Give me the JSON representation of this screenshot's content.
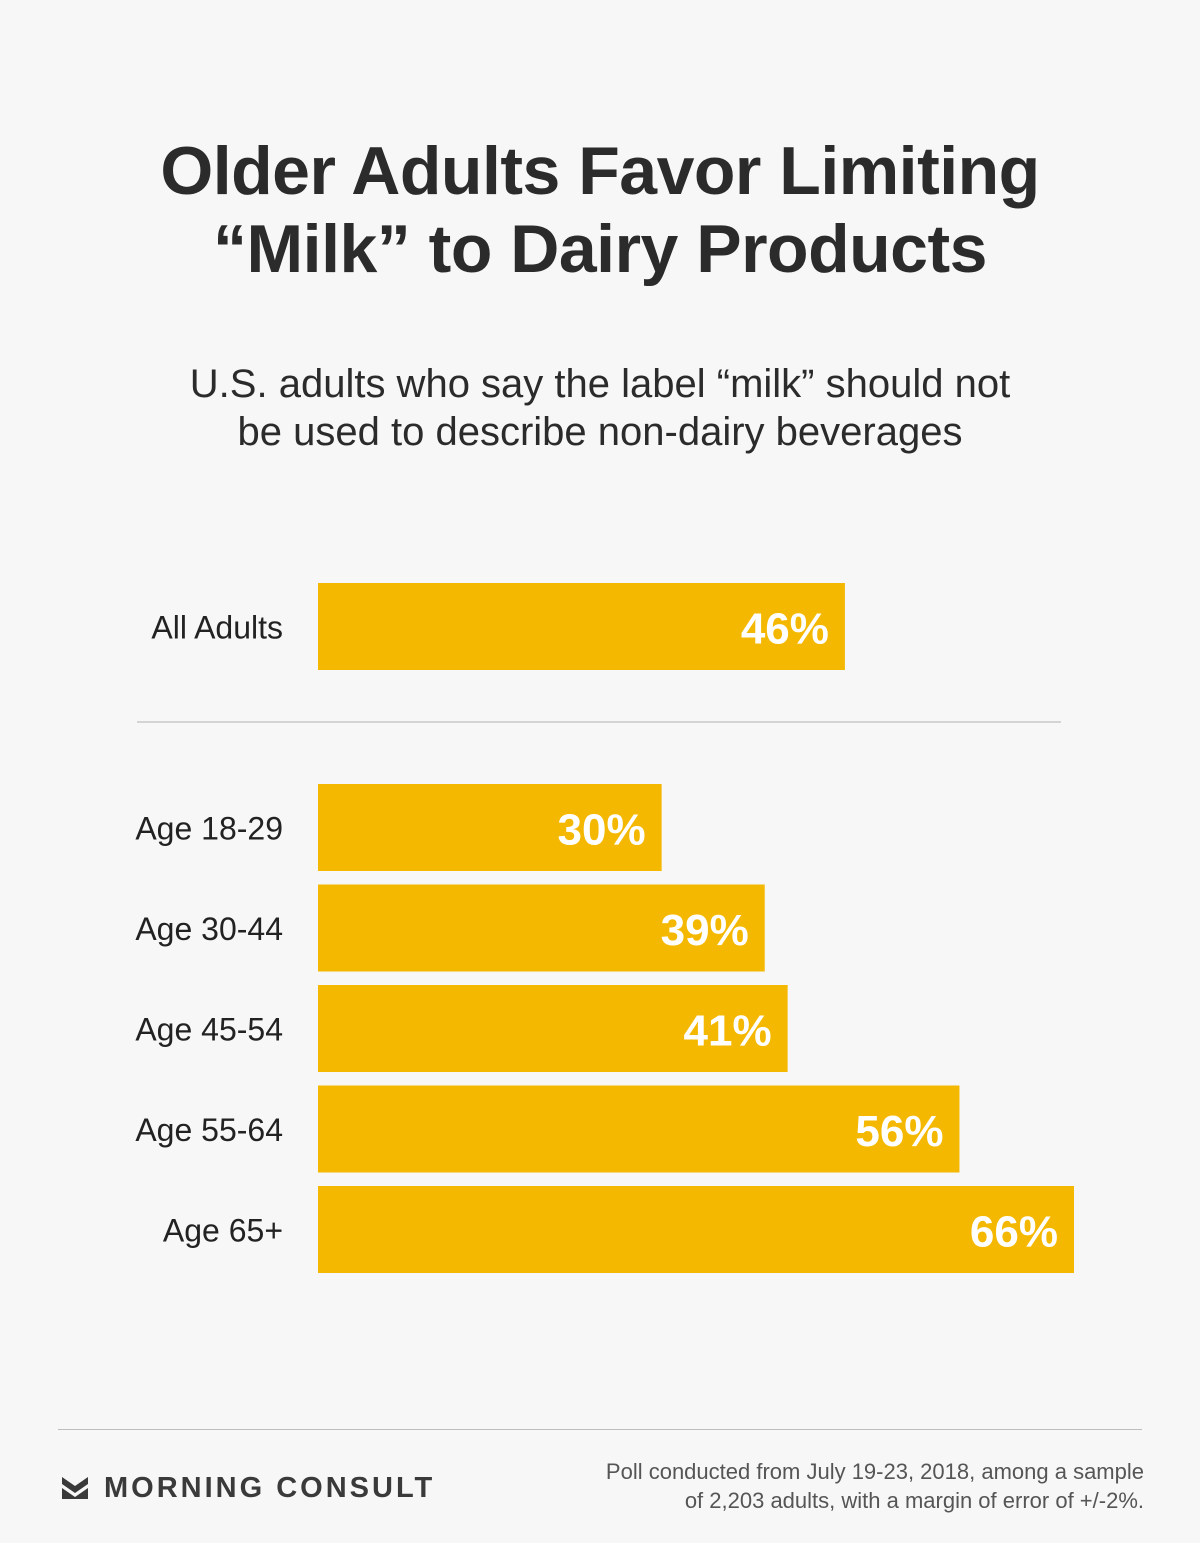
{
  "header": {
    "title_lines": [
      "Older Adults Favor Limiting",
      "“Milk” to Dairy Products"
    ],
    "subtitle_lines": [
      "U.S. adults who say the label “milk” should not",
      "be used to describe non-dairy beverages"
    ]
  },
  "chart_data": {
    "type": "bar",
    "orientation": "horizontal",
    "title": "Older Adults Favor Limiting “Milk” to Dairy Products",
    "subtitle": "U.S. adults who say the label “milk” should not be used to describe non-dairy beverages",
    "categories": [
      "All Adults",
      "Age 18-29",
      "Age 30-44",
      "Age 45-54",
      "Age 55-64",
      "Age 65+"
    ],
    "values": [
      46,
      30,
      39,
      41,
      56,
      66
    ],
    "value_labels": [
      "46%",
      "30%",
      "39%",
      "41%",
      "56%",
      "66%"
    ],
    "unit": "%",
    "groups": [
      [
        "All Adults"
      ],
      [
        "Age 18-29",
        "Age 30-44",
        "Age 45-54",
        "Age 55-64",
        "Age 65+"
      ]
    ],
    "xlim": [
      0,
      66
    ],
    "grid": false,
    "legend": "none",
    "xlabel": "",
    "ylabel": "",
    "bar_color": "#f5b800",
    "label_color": "#ffffff",
    "divider_color": "#c8c8c8"
  },
  "footer": {
    "brand_icon": "morning-consult-chevron-icon",
    "brand_name": "MORNING CONSULT",
    "note_lines": [
      "Poll conducted from July 19-23, 2018, among a sample",
      "of 2,203 adults, with a margin of error of +/-2%."
    ]
  }
}
